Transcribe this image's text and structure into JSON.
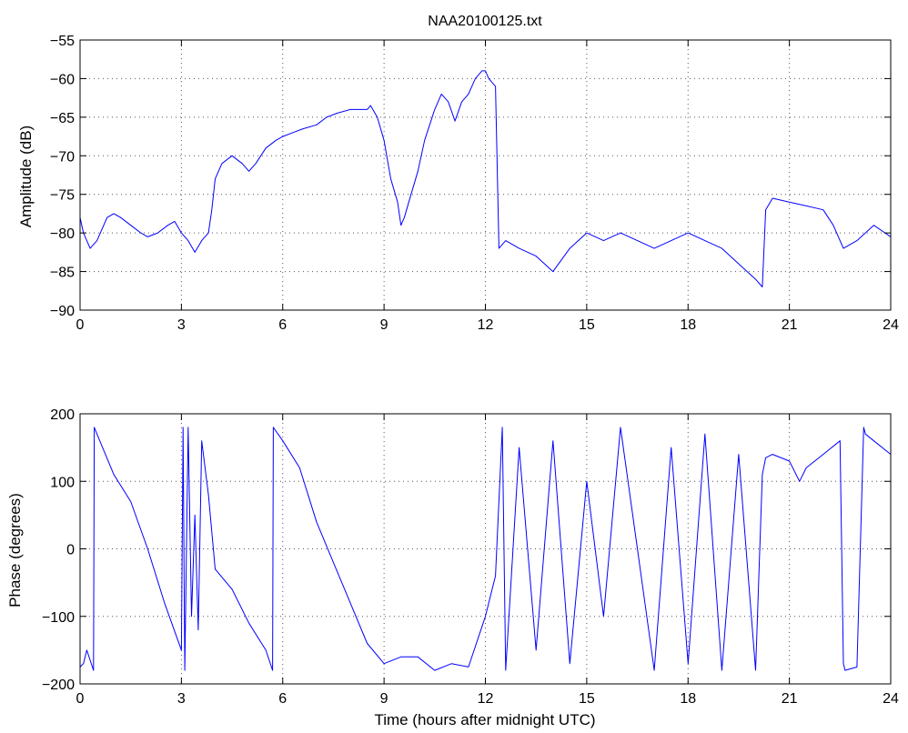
{
  "chart_data": [
    {
      "type": "line",
      "title": "NAA20100125.txt",
      "xlabel": "",
      "ylabel": "Amplitude (dB)",
      "xlim": [
        0,
        24
      ],
      "ylim": [
        -90,
        -55
      ],
      "xticks": [
        "0",
        "3",
        "6",
        "9",
        "12",
        "15",
        "18",
        "21",
        "24"
      ],
      "xtick_values": [
        0,
        3,
        6,
        9,
        12,
        15,
        18,
        21,
        24
      ],
      "yticks": [
        "-90",
        "-85",
        "-80",
        "-75",
        "-70",
        "-65",
        "-60",
        "-55"
      ],
      "ytick_values": [
        -90,
        -85,
        -80,
        -75,
        -70,
        -65,
        -60,
        -55
      ],
      "grid": true,
      "color": "#0000ff",
      "series": [
        {
          "x": [
            0,
            0.1,
            0.3,
            0.5,
            0.8,
            1.0,
            1.2,
            1.5,
            1.8,
            2.0,
            2.3,
            2.6,
            2.8,
            3.0,
            3.2,
            3.4,
            3.6,
            3.8,
            3.9,
            4.0,
            4.2,
            4.5,
            4.8,
            5.0,
            5.2,
            5.5,
            5.8,
            6.0,
            6.3,
            6.6,
            7.0,
            7.3,
            7.6,
            8.0,
            8.3,
            8.5,
            8.6,
            8.8,
            9.0,
            9.2,
            9.4,
            9.5,
            9.6,
            9.8,
            10.0,
            10.2,
            10.5,
            10.7,
            10.9,
            11.1,
            11.3,
            11.5,
            11.7,
            11.9,
            12.0,
            12.1,
            12.2,
            12.3,
            12.4,
            12.6,
            13.0,
            13.5,
            14.0,
            14.5,
            15.0,
            15.5,
            16.0,
            16.5,
            17.0,
            17.5,
            18.0,
            18.5,
            19.0,
            19.5,
            20.0,
            20.2,
            20.3,
            20.5,
            21.0,
            21.5,
            22.0,
            22.3,
            22.6,
            23.0,
            23.5,
            24.0
          ],
          "y": [
            -78,
            -80,
            -82,
            -81,
            -78,
            -77.5,
            -78,
            -79,
            -80,
            -80.5,
            -80,
            -79,
            -78.5,
            -80,
            -81,
            -82.5,
            -81,
            -80,
            -77,
            -73,
            -71,
            -70,
            -71,
            -72,
            -71,
            -69,
            -68,
            -67.5,
            -67,
            -66.5,
            -66,
            -65,
            -64.5,
            -64,
            -64,
            -64,
            -63.5,
            -65,
            -68,
            -73,
            -76,
            -79,
            -78,
            -75,
            -72,
            -68,
            -64,
            -62,
            -63,
            -65.5,
            -63,
            -62,
            -60,
            -59,
            -59,
            -60,
            -60.5,
            -61,
            -82,
            -81,
            -82,
            -83,
            -85,
            -82,
            -80,
            -81,
            -80,
            -81,
            -82,
            -81,
            -80,
            -81,
            -82,
            -84,
            -86,
            -87,
            -77,
            -75.5,
            -76,
            -76.5,
            -77,
            -79,
            -82,
            -81,
            -79,
            -80.5
          ]
        }
      ]
    },
    {
      "type": "line",
      "title": "",
      "xlabel": "Time (hours after midnight UTC)",
      "ylabel": "Phase (degrees)",
      "xlim": [
        0,
        24
      ],
      "ylim": [
        -200,
        200
      ],
      "xticks": [
        "0",
        "3",
        "6",
        "9",
        "12",
        "15",
        "18",
        "21",
        "24"
      ],
      "xtick_values": [
        0,
        3,
        6,
        9,
        12,
        15,
        18,
        21,
        24
      ],
      "yticks": [
        "-200",
        "-100",
        "0",
        "100",
        "200"
      ],
      "ytick_values": [
        -200,
        -100,
        0,
        100,
        200
      ],
      "grid": true,
      "color": "#0000ff",
      "series": [
        {
          "x": [
            0,
            0.1,
            0.2,
            0.3,
            0.4,
            0.42,
            0.5,
            1.0,
            1.5,
            2.0,
            2.5,
            3.0,
            3.05,
            3.1,
            3.2,
            3.3,
            3.4,
            3.5,
            3.6,
            3.7,
            3.8,
            4.0,
            4.5,
            5.0,
            5.5,
            5.7,
            5.72,
            6.0,
            6.5,
            7.0,
            7.5,
            8.0,
            8.5,
            9.0,
            9.5,
            10.0,
            10.5,
            11.0,
            11.5,
            12.0,
            12.3,
            12.5,
            12.6,
            13.0,
            13.5,
            14.0,
            14.5,
            15.0,
            15.5,
            16.0,
            16.5,
            17.0,
            17.5,
            18.0,
            18.5,
            19.0,
            19.5,
            20.0,
            20.2,
            20.3,
            20.5,
            21.0,
            21.3,
            21.5,
            22.0,
            22.5,
            22.6,
            22.65,
            23.0,
            23.2,
            23.25,
            23.5,
            24.0
          ],
          "y": [
            -175,
            -170,
            -150,
            -165,
            -180,
            180,
            170,
            110,
            70,
            0,
            -80,
            -150,
            180,
            -180,
            180,
            -100,
            50,
            -120,
            160,
            120,
            80,
            -30,
            -60,
            -110,
            -150,
            -180,
            180,
            160,
            120,
            40,
            -20,
            -80,
            -140,
            -170,
            -160,
            -160,
            -180,
            -170,
            -175,
            -100,
            -40,
            180,
            -180,
            150,
            -150,
            160,
            -170,
            100,
            -100,
            180,
            0,
            -180,
            150,
            -170,
            170,
            -180,
            140,
            -180,
            110,
            135,
            140,
            130,
            100,
            120,
            140,
            160,
            -170,
            -180,
            -175,
            180,
            170,
            160,
            140
          ]
        }
      ]
    }
  ]
}
